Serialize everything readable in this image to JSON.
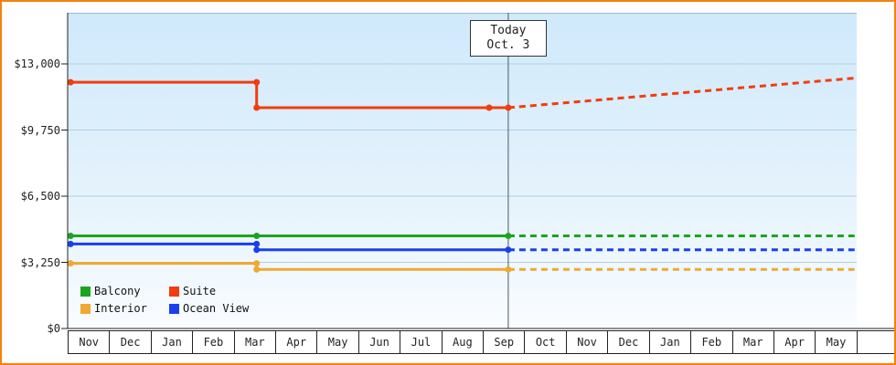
{
  "today_marker": {
    "line1": "Today",
    "line2": "Oct. 3"
  },
  "colors": {
    "frame_border": "#f5820d",
    "plot_bg_top": "#cfe9fb",
    "plot_bg_bottom": "#f9fcff",
    "gridline": "#b3cfe2",
    "axis": "#222222",
    "today_line": "#4a5a66"
  },
  "chart_data": {
    "type": "line",
    "title": "",
    "xlabel": "",
    "ylabel": "",
    "grid": true,
    "legend_position": "bottom-left",
    "y_ticks": [
      {
        "label": "$13,000",
        "value": 13000
      },
      {
        "label": "$9,750",
        "value": 9750
      },
      {
        "label": "$6,500",
        "value": 6500
      },
      {
        "label": "$3,250",
        "value": 3250
      },
      {
        "label": "$0",
        "value": 0
      }
    ],
    "x_ticks": [
      "Nov",
      "Dec",
      "Jan",
      "Feb",
      "Mar",
      "Apr",
      "May",
      "Jun",
      "Jul",
      "Aug",
      "Sep",
      "Oct",
      "Nov",
      "Dec",
      "Jan",
      "Feb",
      "Mar",
      "Apr",
      "May"
    ],
    "ylim": [
      0,
      15500
    ],
    "today_x": 10.61,
    "series": [
      {
        "name": "Suite",
        "color": "#f23d0c",
        "solid": [
          [
            0.07,
            12100
          ],
          [
            4.55,
            12100
          ],
          [
            4.55,
            10850
          ],
          [
            10.61,
            10850
          ]
        ],
        "dashed": [
          [
            10.61,
            10850
          ],
          [
            18.95,
            12300
          ]
        ],
        "markers": [
          [
            0.07,
            12100
          ],
          [
            4.55,
            12100
          ],
          [
            4.55,
            10850
          ],
          [
            10.15,
            10850
          ],
          [
            10.61,
            10850
          ]
        ]
      },
      {
        "name": "Balcony",
        "color": "#1da41d",
        "solid": [
          [
            0.07,
            4550
          ],
          [
            10.61,
            4550
          ]
        ],
        "dashed": [
          [
            10.61,
            4550
          ],
          [
            18.95,
            4550
          ]
        ],
        "markers": [
          [
            0.07,
            4550
          ],
          [
            4.55,
            4550
          ],
          [
            10.61,
            4550
          ]
        ]
      },
      {
        "name": "Ocean View",
        "color": "#1a3fee",
        "solid": [
          [
            0.07,
            4150
          ],
          [
            4.55,
            4150
          ],
          [
            4.55,
            3870
          ],
          [
            10.61,
            3870
          ]
        ],
        "dashed": [
          [
            10.61,
            3870
          ],
          [
            18.95,
            3870
          ]
        ],
        "markers": [
          [
            0.07,
            4150
          ],
          [
            4.55,
            4150
          ],
          [
            4.55,
            3870
          ],
          [
            10.61,
            3870
          ]
        ]
      },
      {
        "name": "Interior",
        "color": "#f0a830",
        "solid": [
          [
            0.07,
            3200
          ],
          [
            4.55,
            3200
          ],
          [
            4.55,
            2900
          ],
          [
            10.61,
            2900
          ]
        ],
        "dashed": [
          [
            10.61,
            2900
          ],
          [
            18.95,
            2900
          ]
        ],
        "markers": [
          [
            0.07,
            3200
          ],
          [
            4.55,
            3200
          ],
          [
            4.55,
            2900
          ],
          [
            10.61,
            2900
          ]
        ]
      }
    ],
    "legend": [
      {
        "label": "Balcony",
        "color": "#1da41d"
      },
      {
        "label": "Suite",
        "color": "#f23d0c"
      },
      {
        "label": "Interior",
        "color": "#f0a830"
      },
      {
        "label": "Ocean View",
        "color": "#1a3fee"
      }
    ]
  }
}
